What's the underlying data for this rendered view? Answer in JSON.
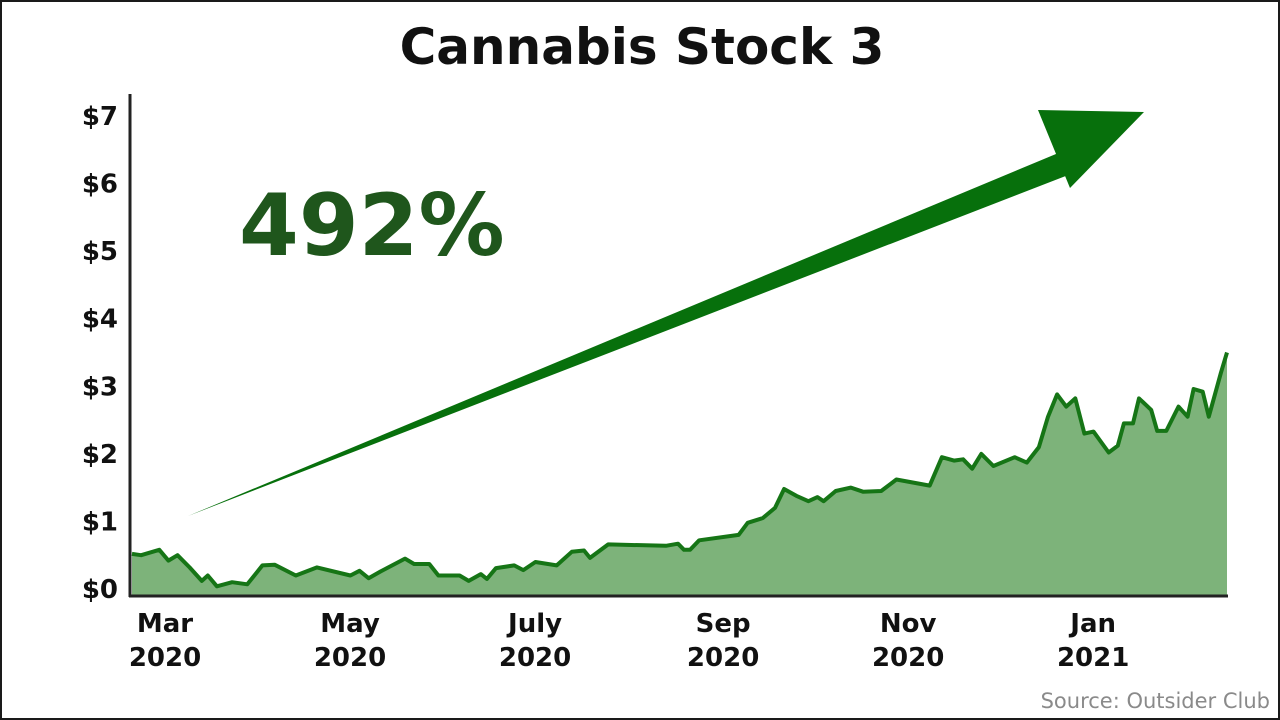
{
  "colors": {
    "line": "#167516",
    "fill": "#7db37a",
    "arrow": "#07700c",
    "callout": "#1f561c",
    "axis": "#222222"
  },
  "callout": "492%",
  "source": "Source: Outsider Club",
  "chart_data": {
    "type": "area",
    "title": "Cannabis Stock 3",
    "xlabel": "",
    "ylabel": "",
    "ylim": [
      0,
      7.3
    ],
    "grid": false,
    "legend": "none",
    "y_ticks": [
      {
        "value": 0,
        "label": "$0"
      },
      {
        "value": 1,
        "label": "$1"
      },
      {
        "value": 2,
        "label": "$2"
      },
      {
        "value": 3,
        "label": "$3"
      },
      {
        "value": 4,
        "label": "$4"
      },
      {
        "value": 5,
        "label": "$5"
      },
      {
        "value": 6,
        "label": "$6"
      },
      {
        "value": 7,
        "label": "$7"
      }
    ],
    "x_ticks": [
      {
        "date": "2020-03-01",
        "line1": "Mar",
        "line2": "2020"
      },
      {
        "date": "2020-05-01",
        "line1": "May",
        "line2": "2020"
      },
      {
        "date": "2020-07-01",
        "line1": "July",
        "line2": "2020"
      },
      {
        "date": "2020-09-01",
        "line1": "Sep",
        "line2": "2020"
      },
      {
        "date": "2020-11-01",
        "line1": "Nov",
        "line2": "2020"
      },
      {
        "date": "2021-01-01",
        "line1": "Jan",
        "line2": "2021"
      }
    ],
    "x_range": [
      "2020-03-01",
      "2021-02-25"
    ],
    "series": [
      {
        "points": [
          [
            "2020-03-01",
            0.52
          ],
          [
            "2020-03-04",
            0.5
          ],
          [
            "2020-03-10",
            0.58
          ],
          [
            "2020-03-13",
            0.42
          ],
          [
            "2020-03-16",
            0.5
          ],
          [
            "2020-03-20",
            0.32
          ],
          [
            "2020-03-24",
            0.12
          ],
          [
            "2020-03-26",
            0.2
          ],
          [
            "2020-03-29",
            0.04
          ],
          [
            "2020-04-03",
            0.1
          ],
          [
            "2020-04-08",
            0.07
          ],
          [
            "2020-04-13",
            0.35
          ],
          [
            "2020-04-17",
            0.36
          ],
          [
            "2020-04-24",
            0.2
          ],
          [
            "2020-05-01",
            0.32
          ],
          [
            "2020-05-12",
            0.2
          ],
          [
            "2020-05-15",
            0.27
          ],
          [
            "2020-05-18",
            0.16
          ],
          [
            "2020-05-22",
            0.26
          ],
          [
            "2020-05-30",
            0.45
          ],
          [
            "2020-06-02",
            0.37
          ],
          [
            "2020-06-07",
            0.37
          ],
          [
            "2020-06-10",
            0.2
          ],
          [
            "2020-06-17",
            0.2
          ],
          [
            "2020-06-20",
            0.12
          ],
          [
            "2020-06-24",
            0.22
          ],
          [
            "2020-06-26",
            0.15
          ],
          [
            "2020-06-29",
            0.31
          ],
          [
            "2020-07-05",
            0.35
          ],
          [
            "2020-07-08",
            0.28
          ],
          [
            "2020-07-12",
            0.4
          ],
          [
            "2020-07-19",
            0.35
          ],
          [
            "2020-07-24",
            0.55
          ],
          [
            "2020-07-28",
            0.57
          ],
          [
            "2020-07-30",
            0.46
          ],
          [
            "2020-08-05",
            0.66
          ],
          [
            "2020-08-24",
            0.64
          ],
          [
            "2020-08-28",
            0.67
          ],
          [
            "2020-08-30",
            0.58
          ],
          [
            "2020-09-01",
            0.58
          ],
          [
            "2020-09-04",
            0.72
          ],
          [
            "2020-09-17",
            0.8
          ],
          [
            "2020-09-20",
            0.98
          ],
          [
            "2020-09-25",
            1.05
          ],
          [
            "2020-09-29",
            1.2
          ],
          [
            "2020-10-02",
            1.48
          ],
          [
            "2020-10-06",
            1.38
          ],
          [
            "2020-10-10",
            1.3
          ],
          [
            "2020-10-13",
            1.36
          ],
          [
            "2020-10-15",
            1.3
          ],
          [
            "2020-10-19",
            1.45
          ],
          [
            "2020-10-24",
            1.5
          ],
          [
            "2020-10-28",
            1.44
          ],
          [
            "2020-11-03",
            1.45
          ],
          [
            "2020-11-08",
            1.62
          ],
          [
            "2020-11-19",
            1.53
          ],
          [
            "2020-11-23",
            1.95
          ],
          [
            "2020-11-27",
            1.9
          ],
          [
            "2020-11-30",
            1.92
          ],
          [
            "2020-12-03",
            1.78
          ],
          [
            "2020-12-06",
            2.0
          ],
          [
            "2020-12-10",
            1.82
          ],
          [
            "2020-12-17",
            1.95
          ],
          [
            "2020-12-21",
            1.87
          ],
          [
            "2020-12-25",
            2.1
          ],
          [
            "2020-12-28",
            2.55
          ],
          [
            "2020-12-31",
            2.88
          ],
          [
            "2021-01-03",
            2.7
          ],
          [
            "2021-01-06",
            2.82
          ],
          [
            "2021-01-09",
            2.3
          ],
          [
            "2021-01-12",
            2.33
          ],
          [
            "2021-01-17",
            2.02
          ],
          [
            "2021-01-20",
            2.12
          ],
          [
            "2021-01-22",
            2.45
          ],
          [
            "2021-01-25",
            2.45
          ],
          [
            "2021-01-27",
            2.82
          ],
          [
            "2021-01-31",
            2.65
          ],
          [
            "2021-02-02",
            2.34
          ],
          [
            "2021-02-05",
            2.34
          ],
          [
            "2021-02-09",
            2.7
          ],
          [
            "2021-02-12",
            2.55
          ],
          [
            "2021-02-14",
            2.96
          ],
          [
            "2021-02-17",
            2.92
          ],
          [
            "2021-02-19",
            2.55
          ],
          [
            "2021-02-23",
            3.2
          ],
          [
            "2021-02-25",
            3.5
          ]
        ]
      }
    ]
  }
}
